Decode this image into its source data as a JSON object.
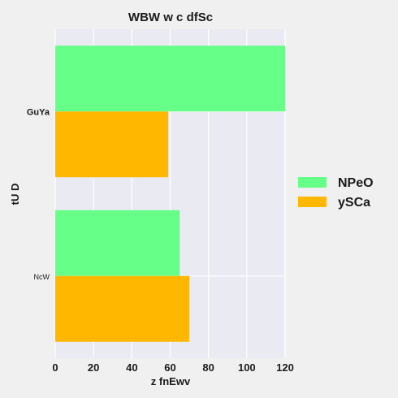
{
  "chart_data": {
    "type": "bar",
    "orientation": "horizontal",
    "title": "WBW w c dfSc",
    "xlabel": "z fnEwv",
    "ylabel": "tU D",
    "categories": [
      "GuYa",
      "NcW"
    ],
    "series": [
      {
        "name": "NPeO",
        "color": "#66ff88",
        "values": [
          120,
          65
        ]
      },
      {
        "name": "ySCa",
        "color": "#ffb700",
        "values": [
          59,
          70
        ]
      }
    ],
    "xlim": [
      0,
      120
    ],
    "xticks": [
      "0",
      "20",
      "40",
      "60",
      "80",
      "100",
      "120"
    ],
    "grid": true,
    "legend_position": "right"
  }
}
